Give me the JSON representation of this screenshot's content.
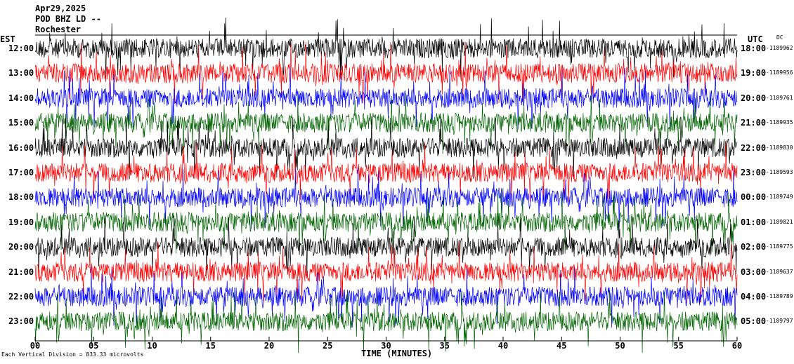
{
  "header": {
    "date": "Apr29,2025",
    "station": "POD BHZ LD --",
    "location": "Rochester"
  },
  "labels": {
    "left_zone": "EST",
    "right_zone": "UTC",
    "dc_header": "DC",
    "x_axis_title": "TIME (MINUTES)",
    "scale_note": "Each Vertical Division = 833.33 microvolts"
  },
  "colors": {
    "trace_cycle": [
      "#000000",
      "#ff0000",
      "#0000ff",
      "#006400"
    ],
    "background": "#ffffff"
  },
  "chart_data": {
    "type": "line",
    "title": "",
    "xlabel": "TIME (MINUTES)",
    "ylabel": "",
    "xlim": [
      0,
      60
    ],
    "x_ticks": [
      "00",
      "05",
      "10",
      "15",
      "20",
      "25",
      "30",
      "35",
      "40",
      "45",
      "50",
      "55",
      "60"
    ],
    "grid": false,
    "legend": "none",
    "rows": [
      {
        "est": "12:00",
        "utc": "18:00",
        "dc": "-1189962"
      },
      {
        "est": "13:00",
        "utc": "19:00",
        "dc": "-1189956"
      },
      {
        "est": "14:00",
        "utc": "20:00",
        "dc": "-1189761"
      },
      {
        "est": "15:00",
        "utc": "21:00",
        "dc": "-1189935"
      },
      {
        "est": "16:00",
        "utc": "22:00",
        "dc": "-1189830"
      },
      {
        "est": "17:00",
        "utc": "23:00",
        "dc": "-1189593"
      },
      {
        "est": "18:00",
        "utc": "00:00",
        "dc": "-1189749"
      },
      {
        "est": "19:00",
        "utc": "01:00",
        "dc": "-1189821"
      },
      {
        "est": "20:00",
        "utc": "02:00",
        "dc": "-1189775"
      },
      {
        "est": "21:00",
        "utc": "03:00",
        "dc": "-1189637"
      },
      {
        "est": "22:00",
        "utc": "04:00",
        "dc": "-1189789"
      },
      {
        "est": "23:00",
        "utc": "05:00",
        "dc": "-1189797"
      }
    ]
  }
}
